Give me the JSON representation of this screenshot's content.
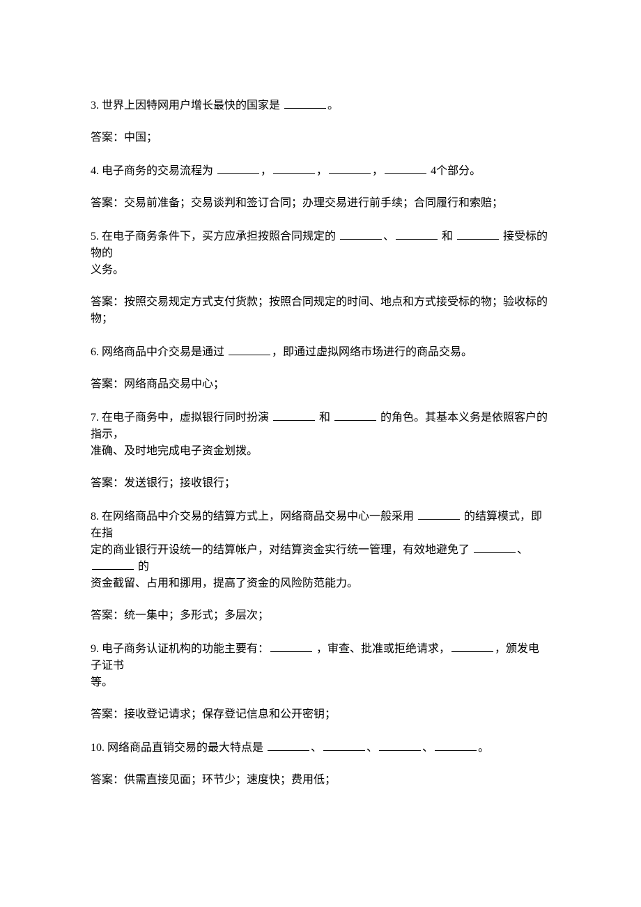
{
  "items": [
    {
      "question": "3.  世界上因特网用户增长最快的国家是 _______。",
      "answer": "答案：中国；"
    },
    {
      "question": "4.  电子商务的交易流程为 _______，_______，_______，_______ 4个部分。",
      "answer": "答案：交易前准备；交易谈判和签订合同；办理交易进行前手续；合同履行和索赔；"
    },
    {
      "question": "5.  在电子商务条件下，买方应承担按照合同规定的 _______、_______ 和 _______ 接受标的物的\n义务。",
      "answer": "答案：按照交易规定方式支付货款；按照合同规定的时间、地点和方式接受标的物；验收标的物；"
    },
    {
      "question": "6.  网络商品中介交易是通过 _______，即通过虚拟网络市场进行的商品交易。",
      "answer": "答案：网络商品交易中心；"
    },
    {
      "question": "7. 在电子商务中，虚拟银行同时扮演 _______ 和 _______ 的角色。其基本义务是依照客户的指示，\n准确、及时地完成电子资金划拨。",
      "answer": "答案：发送银行；接收银行；"
    },
    {
      "question": "8.  在网络商品中介交易的结算方式上，网络商品交易中心一般采用 _______ 的结算模式，即在指\n定的商业银行开设统一的结算帐户，对结算资金实行统一管理，有效地避免了 _______、_______ 的\n资金截留、占用和挪用，提高了资金的风险防范能力。",
      "answer": "答案：统一集中；多形式；多层次；"
    },
    {
      "question": "9.  电子商务认证机构的功能主要有：_______ ，审查、批准或拒绝请求，_______，颁发电子证书\n等。",
      "answer": "答案：接收登记请求；保存登记信息和公开密钥；"
    },
    {
      "question": "10.  网络商品直销交易的最大特点是 _______、_______、_______、_______。",
      "answer": "答案：供需直接见面；环节少；速度快；费用低；"
    }
  ],
  "blank_token": "_______"
}
